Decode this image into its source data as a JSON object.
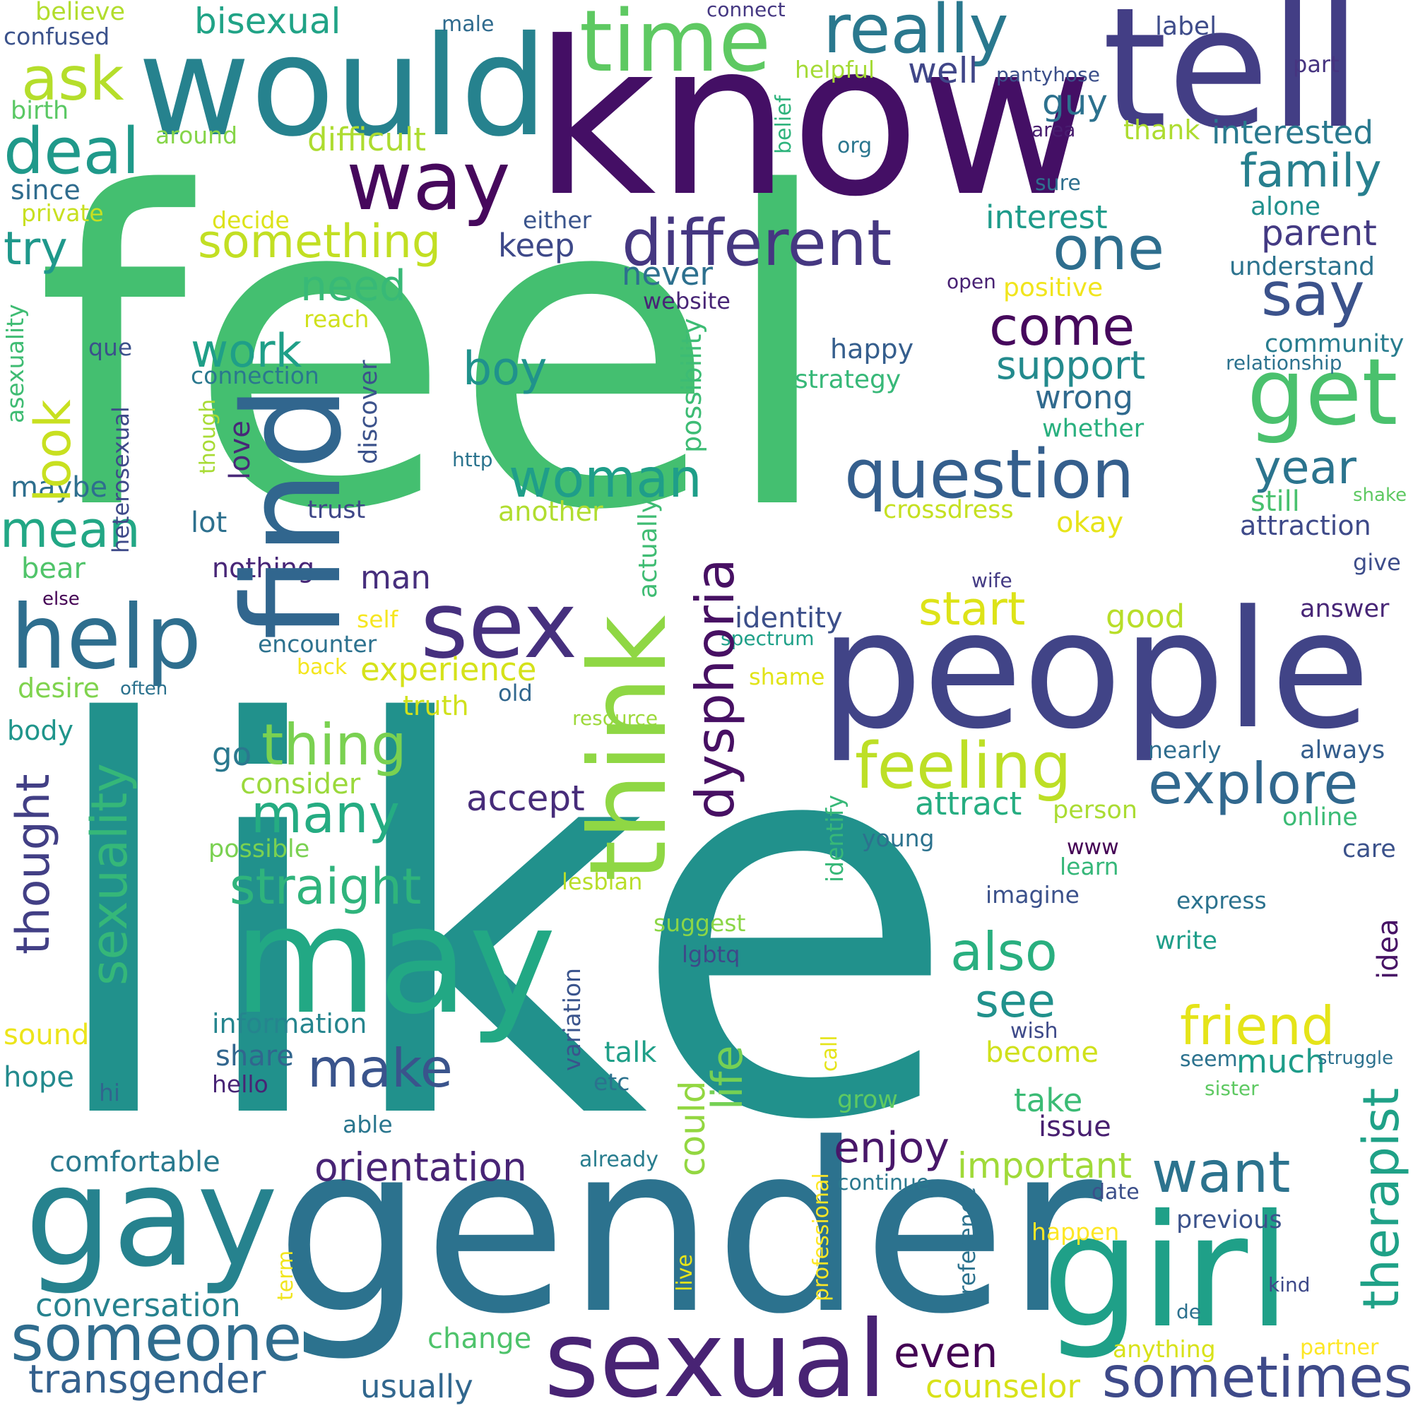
{
  "words": [
    {
      "text": "feel",
      "color": "#44bf70"
    },
    {
      "text": "like",
      "color": "#21918c"
    },
    {
      "text": "know",
      "color": "#440f65"
    },
    {
      "text": "gender",
      "color": "#2c728e"
    },
    {
      "text": "would",
      "color": "#26828e"
    },
    {
      "text": "tell",
      "color": "#433e85"
    },
    {
      "text": "people",
      "color": "#414487"
    },
    {
      "text": "think",
      "color": "#8fd744"
    },
    {
      "text": "find",
      "color": "#31668e"
    },
    {
      "text": "may",
      "color": "#22a884"
    },
    {
      "text": "gay",
      "color": "#26828e"
    },
    {
      "text": "girl",
      "color": "#1fa088"
    },
    {
      "text": "sexual",
      "color": "#482374"
    },
    {
      "text": "sex",
      "color": "#46307e"
    },
    {
      "text": "help",
      "color": "#2e6e8e"
    },
    {
      "text": "time",
      "color": "#5ec962"
    },
    {
      "text": "way",
      "color": "#46085c"
    },
    {
      "text": "different",
      "color": "#453781"
    },
    {
      "text": "really",
      "color": "#2a788e"
    },
    {
      "text": "question",
      "color": "#355f8d"
    },
    {
      "text": "get",
      "color": "#4ac16d"
    },
    {
      "text": "dysphoria",
      "color": "#471063"
    },
    {
      "text": "feeling",
      "color": "#bddf26"
    },
    {
      "text": "someone",
      "color": "#2f6c8e"
    },
    {
      "text": "sometimes",
      "color": "#3e4a89"
    },
    {
      "text": "ask",
      "color": "#b5de2b"
    },
    {
      "text": "deal",
      "color": "#1f998a"
    },
    {
      "text": "something",
      "color": "#c2df23"
    },
    {
      "text": "one",
      "color": "#2e6e8e"
    },
    {
      "text": "say",
      "color": "#3b528b"
    },
    {
      "text": "come",
      "color": "#46085c"
    },
    {
      "text": "look",
      "color": "#c8e020"
    },
    {
      "text": "woman",
      "color": "#1f9e89"
    },
    {
      "text": "thing",
      "color": "#7ad151"
    },
    {
      "text": "sexuality",
      "color": "#35b779"
    },
    {
      "text": "thought",
      "color": "#423f85"
    },
    {
      "text": "straight",
      "color": "#2fb47c"
    },
    {
      "text": "many",
      "color": "#25ac82"
    },
    {
      "text": "explore",
      "color": "#31688e"
    },
    {
      "text": "want",
      "color": "#2c738e"
    },
    {
      "text": "also",
      "color": "#29af7f"
    },
    {
      "text": "friend",
      "color": "#e5e419"
    },
    {
      "text": "therapist",
      "color": "#1fa187"
    },
    {
      "text": "make",
      "color": "#3a548c"
    },
    {
      "text": "transgender",
      "color": "#34608d"
    },
    {
      "text": "orientation",
      "color": "#482475"
    },
    {
      "text": "mean",
      "color": "#22a785"
    },
    {
      "text": "try",
      "color": "#1f988b"
    },
    {
      "text": "family",
      "color": "#277f8e"
    },
    {
      "text": "support",
      "color": "#238a8d"
    },
    {
      "text": "start",
      "color": "#dde318"
    },
    {
      "text": "boy",
      "color": "#20928c"
    },
    {
      "text": "work",
      "color": "#1f9f88"
    },
    {
      "text": "need",
      "color": "#38b977"
    },
    {
      "text": "life",
      "color": "#75d054"
    },
    {
      "text": "year",
      "color": "#2b748e"
    },
    {
      "text": "see",
      "color": "#21918c"
    },
    {
      "text": "even",
      "color": "#440154"
    },
    {
      "text": "enjoy",
      "color": "#481769"
    },
    {
      "text": "important",
      "color": "#a0da39"
    },
    {
      "text": "accept",
      "color": "#472c7a"
    },
    {
      "text": "bisexual",
      "color": "#20a386"
    },
    {
      "text": "difficult",
      "color": "#addc30"
    },
    {
      "text": "guy",
      "color": "#2c718e"
    },
    {
      "text": "well",
      "color": "#404688"
    },
    {
      "text": "interested",
      "color": "#29798e"
    },
    {
      "text": "interest",
      "color": "#1e9b8a"
    },
    {
      "text": "wrong",
      "color": "#306a8e"
    },
    {
      "text": "parent",
      "color": "#443a83"
    },
    {
      "text": "keep",
      "color": "#3e4989"
    },
    {
      "text": "never",
      "color": "#2d708e"
    },
    {
      "text": "good",
      "color": "#b8de29"
    },
    {
      "text": "identity",
      "color": "#3c4f8a"
    },
    {
      "text": "experience",
      "color": "#d5e21a"
    },
    {
      "text": "could",
      "color": "#93d741"
    },
    {
      "text": "much",
      "color": "#1e9c89"
    },
    {
      "text": "talk",
      "color": "#1f9f88"
    },
    {
      "text": "take",
      "color": "#3bbb75"
    },
    {
      "text": "become",
      "color": "#d0e11c"
    },
    {
      "text": "issue",
      "color": "#481f70"
    },
    {
      "text": "attract",
      "color": "#26ad81"
    },
    {
      "text": "conversation",
      "color": "#26828e"
    },
    {
      "text": "usually",
      "color": "#31678e"
    },
    {
      "text": "counselor",
      "color": "#d8e219"
    },
    {
      "text": "comfortable",
      "color": "#29798e"
    },
    {
      "text": "change",
      "color": "#4ec36b"
    },
    {
      "text": "hope",
      "color": "#238a8d"
    },
    {
      "text": "share",
      "color": "#31668e"
    },
    {
      "text": "information",
      "color": "#25858e"
    },
    {
      "text": "sound",
      "color": "#ece51b"
    },
    {
      "text": "go",
      "color": "#2a788e"
    },
    {
      "text": "man",
      "color": "#472f7d"
    },
    {
      "text": "love",
      "color": "#482878"
    },
    {
      "text": "lot",
      "color": "#2d708e"
    },
    {
      "text": "nothing",
      "color": "#482677"
    },
    {
      "text": "trust",
      "color": "#3f4788"
    },
    {
      "text": "maybe",
      "color": "#2e6f8e"
    },
    {
      "text": "bear",
      "color": "#50c46a"
    },
    {
      "text": "body",
      "color": "#1f958b"
    },
    {
      "text": "desire",
      "color": "#7fd34e"
    },
    {
      "text": "truth",
      "color": "#d0e11c"
    },
    {
      "text": "consider",
      "color": "#9bd93c"
    },
    {
      "text": "possible",
      "color": "#7ad151"
    },
    {
      "text": "possibility",
      "color": "#3dbc74"
    },
    {
      "text": "actually",
      "color": "#3fbc73"
    },
    {
      "text": "another",
      "color": "#b0dd2f"
    },
    {
      "text": "crossdress",
      "color": "#c5e021"
    },
    {
      "text": "okay",
      "color": "#e7e419"
    },
    {
      "text": "attraction",
      "color": "#3e4a89"
    },
    {
      "text": "still",
      "color": "#48c16e"
    },
    {
      "text": "whether",
      "color": "#2ab07f"
    },
    {
      "text": "happy",
      "color": "#355e8d"
    },
    {
      "text": "strategy",
      "color": "#37b878"
    },
    {
      "text": "community",
      "color": "#287c8e"
    },
    {
      "text": "relationship",
      "color": "#2c728e"
    },
    {
      "text": "understand",
      "color": "#2c738e"
    },
    {
      "text": "alone",
      "color": "#21908d"
    },
    {
      "text": "positive",
      "color": "#f1e51d"
    },
    {
      "text": "website",
      "color": "#482576"
    },
    {
      "text": "either",
      "color": "#3a548c"
    },
    {
      "text": "sure",
      "color": "#2e6f8e"
    },
    {
      "text": "thank",
      "color": "#addc30"
    },
    {
      "text": "area",
      "color": "#481d6f"
    },
    {
      "text": "part",
      "color": "#463480"
    },
    {
      "text": "label",
      "color": "#3e4c8a"
    },
    {
      "text": "pantyhose",
      "color": "#3c4f8a"
    },
    {
      "text": "helpful",
      "color": "#a5db36"
    },
    {
      "text": "connect",
      "color": "#453882"
    },
    {
      "text": "male",
      "color": "#2f6b8e"
    },
    {
      "text": "believe",
      "color": "#b2dd2d"
    },
    {
      "text": "confused",
      "color": "#3b528b"
    },
    {
      "text": "birth",
      "color": "#5ac864"
    },
    {
      "text": "around",
      "color": "#86d549"
    },
    {
      "text": "since",
      "color": "#2f6c8e"
    },
    {
      "text": "private",
      "color": "#c8e020"
    },
    {
      "text": "decide",
      "color": "#dde318"
    },
    {
      "text": "belief",
      "color": "#2eb37c"
    },
    {
      "text": "org",
      "color": "#2a768e"
    },
    {
      "text": "open",
      "color": "#482173"
    },
    {
      "text": "reach",
      "color": "#d0e11c"
    },
    {
      "text": "que",
      "color": "#3b518b"
    },
    {
      "text": "connection",
      "color": "#2a788e"
    },
    {
      "text": "discover",
      "color": "#3b528b"
    },
    {
      "text": "asexuality",
      "color": "#3fbc73"
    },
    {
      "text": "though",
      "color": "#a8db34"
    },
    {
      "text": "heterosexual",
      "color": "#3e4a89"
    },
    {
      "text": "http",
      "color": "#2b748e"
    },
    {
      "text": "shake",
      "color": "#5ec962"
    },
    {
      "text": "give",
      "color": "#3d4d8a"
    },
    {
      "text": "wife",
      "color": "#443b84"
    },
    {
      "text": "else",
      "color": "#440154"
    },
    {
      "text": "self",
      "color": "#f6e620"
    },
    {
      "text": "encounter",
      "color": "#2c718e"
    },
    {
      "text": "spectrum",
      "color": "#1fa088"
    },
    {
      "text": "back",
      "color": "#f4e61e"
    },
    {
      "text": "often",
      "color": "#2c728e"
    },
    {
      "text": "old",
      "color": "#31678e"
    },
    {
      "text": "resource",
      "color": "#9dd93b"
    },
    {
      "text": "shame",
      "color": "#e2e418"
    },
    {
      "text": "answer",
      "color": "#482677"
    },
    {
      "text": "nearly",
      "color": "#2e6d8e"
    },
    {
      "text": "always",
      "color": "#355e8d"
    },
    {
      "text": "person",
      "color": "#aadc32"
    },
    {
      "text": "online",
      "color": "#3bbb75"
    },
    {
      "text": "care",
      "color": "#3b528b"
    },
    {
      "text": "young",
      "color": "#2c728e"
    },
    {
      "text": "identify",
      "color": "#37b878"
    },
    {
      "text": "www",
      "color": "#440154"
    },
    {
      "text": "learn",
      "color": "#35b779"
    },
    {
      "text": "lesbian",
      "color": "#b8de29"
    },
    {
      "text": "imagine",
      "color": "#3b518b"
    },
    {
      "text": "express",
      "color": "#2c728e"
    },
    {
      "text": "suggest",
      "color": "#8bd646"
    },
    {
      "text": "lgbtq",
      "color": "#3e4989"
    },
    {
      "text": "write",
      "color": "#1f9e89"
    },
    {
      "text": "idea",
      "color": "#471365"
    },
    {
      "text": "variation",
      "color": "#3a548c"
    },
    {
      "text": "etc",
      "color": "#2c728e"
    },
    {
      "text": "call",
      "color": "#e5e419"
    },
    {
      "text": "grow",
      "color": "#5ec962"
    },
    {
      "text": "wish",
      "color": "#3e4a89"
    },
    {
      "text": "seem",
      "color": "#2c728e"
    },
    {
      "text": "struggle",
      "color": "#2c718e"
    },
    {
      "text": "sister",
      "color": "#5ec962"
    },
    {
      "text": "hi",
      "color": "#31668e"
    },
    {
      "text": "hello",
      "color": "#482475"
    },
    {
      "text": "able",
      "color": "#2a768e"
    },
    {
      "text": "already",
      "color": "#287d8e"
    },
    {
      "text": "continue",
      "color": "#2a788e"
    },
    {
      "text": "date",
      "color": "#3c4f8a"
    },
    {
      "text": "previous",
      "color": "#3b528b"
    },
    {
      "text": "professional",
      "color": "#fde725"
    },
    {
      "text": "preference",
      "color": "#2c728e"
    },
    {
      "text": "happen",
      "color": "#fde725"
    },
    {
      "text": "term",
      "color": "#f1e51d"
    },
    {
      "text": "live",
      "color": "#e7e419"
    },
    {
      "text": "kind",
      "color": "#3e4989"
    },
    {
      "text": "de",
      "color": "#2c718e"
    },
    {
      "text": "anything",
      "color": "#d8e219"
    },
    {
      "text": "partner",
      "color": "#fde725"
    }
  ]
}
